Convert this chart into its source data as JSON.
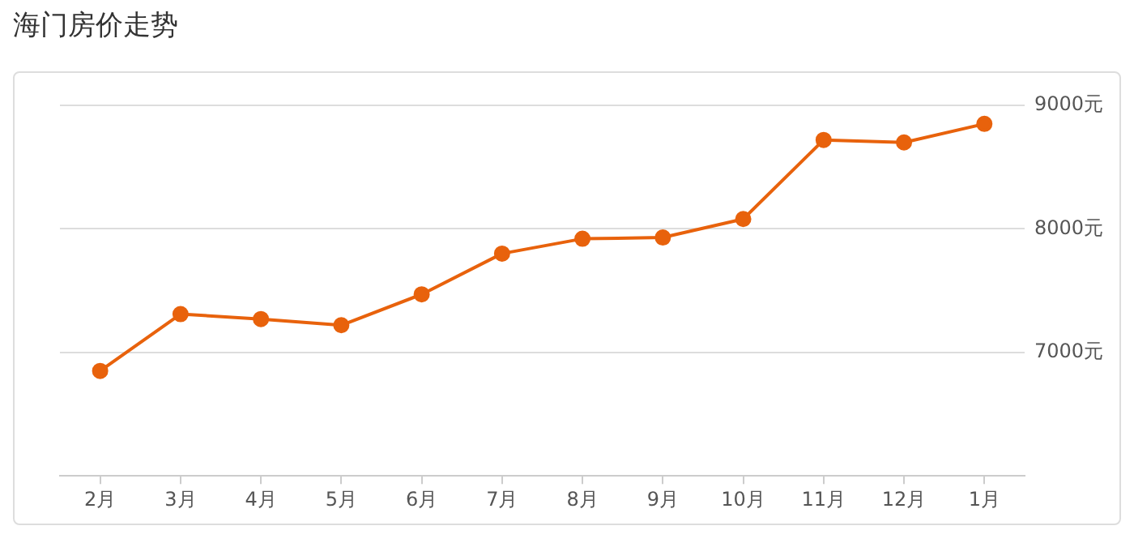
{
  "chart_data": {
    "type": "line",
    "title": "海门房价走势",
    "categories": [
      "2月",
      "3月",
      "4月",
      "5月",
      "6月",
      "7月",
      "8月",
      "9月",
      "10月",
      "11月",
      "12月",
      "1月"
    ],
    "series": [
      {
        "color": "#e8620c",
        "values": [
          6850,
          7310,
          7270,
          7220,
          7470,
          7800,
          7920,
          7930,
          8080,
          8720,
          8700,
          8850
        ]
      }
    ],
    "ylim": [
      6000,
      9000
    ],
    "yticks": [
      {
        "value": 6000,
        "label": null
      },
      {
        "value": 7000,
        "label": "7000元"
      },
      {
        "value": 8000,
        "label": "8000元"
      },
      {
        "value": 9000,
        "label": "9000元"
      }
    ],
    "grid": "y",
    "legend": false,
    "marker": "circle",
    "line_style": "solid"
  }
}
